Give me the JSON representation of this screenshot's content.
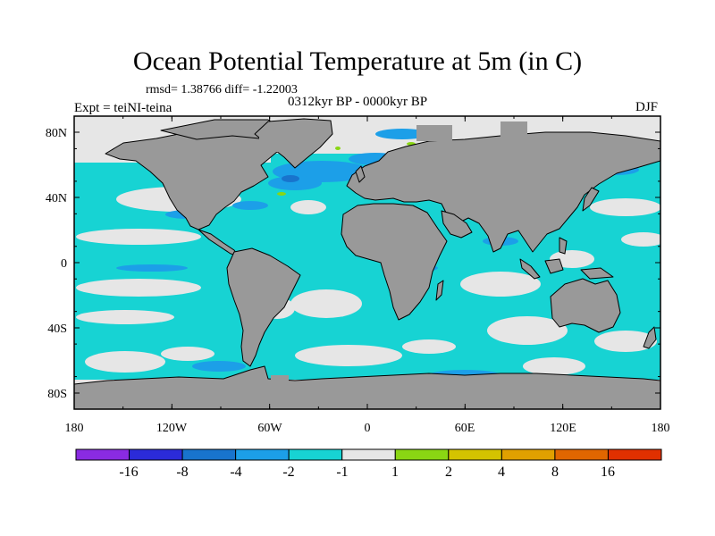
{
  "figure": {
    "title": "Ocean Potential Temperature at 5m (in C)",
    "stats_line": "rmsd= 1.38766  diff= -1.22003",
    "period": "0312kyr BP - 0000kyr BP",
    "experiment": "Expt = teiNI-teina",
    "season": "DJF"
  },
  "map": {
    "projection": "cylindrical-equidistant",
    "lon_range": [
      -180,
      180
    ],
    "lat_range": [
      -90,
      90
    ],
    "x_tick_labels": [
      "180",
      "120W",
      "60W",
      "0",
      "60E",
      "120E",
      "180"
    ],
    "y_tick_labels": [
      "80N",
      "40N",
      "0",
      "40S",
      "80S"
    ],
    "land_color": "#999999",
    "ocean_dominant_color": "#17d3d3",
    "ice_color": "#e6e6e6"
  },
  "colorbar": {
    "colors": [
      "#8a2be2",
      "#2b2bd9",
      "#1874cd",
      "#1c9fe8",
      "#17d3d3",
      "#e6e6e6",
      "#8ad613",
      "#d4c300",
      "#e0a000",
      "#e06600",
      "#e03000"
    ],
    "labels": [
      "-16",
      "-8",
      "-4",
      "-2",
      "-1",
      "1",
      "2",
      "4",
      "8",
      "16"
    ]
  }
}
